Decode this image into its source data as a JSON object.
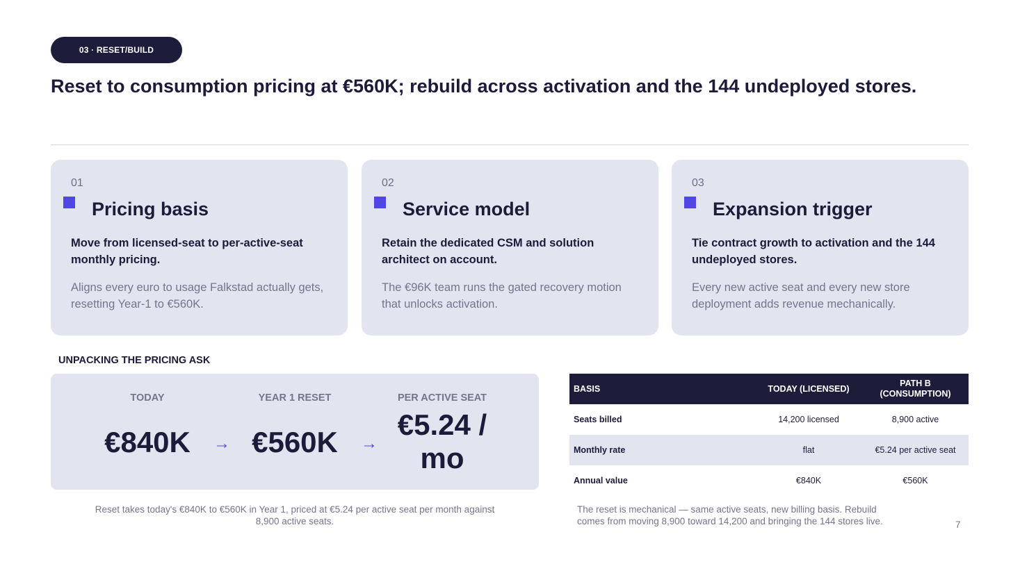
{
  "tag": "03 · RESET/BUILD",
  "title": "Reset to consumption pricing at €560K; rebuild across activation and the 144 undeployed stores.",
  "cards": [
    {
      "num": "01",
      "title": "Pricing basis",
      "lead": "Move from licensed-seat to per-active-seat monthly pricing.",
      "body": "Aligns every euro to usage Falkstad actually gets, resetting Year-1 to €560K."
    },
    {
      "num": "02",
      "title": "Service model",
      "lead": "Retain the dedicated CSM and solution architect on account.",
      "body": "The €96K team runs the gated recovery motion that unlocks activation."
    },
    {
      "num": "03",
      "title": "Expansion trigger",
      "lead": "Tie contract growth to activation and the 144 undeployed stores.",
      "body": "Every new active seat and every new store deployment adds revenue mechanically."
    }
  ],
  "section_label": "UNPACKING THE PRICING ASK",
  "metrics": [
    {
      "label": "TODAY",
      "value": "€840K"
    },
    {
      "label": "YEAR 1 RESET",
      "value": "€560K"
    },
    {
      "label": "PER ACTIVE SEAT",
      "value": "€5.24 / mo"
    }
  ],
  "arrow_glyph": "→",
  "caption_left": "Reset takes today's €840K to €560K in Year 1, priced at €5.24 per active seat per month against 8,900 active seats.",
  "table": {
    "headers": [
      "BASIS",
      "TODAY (LICENSED)",
      "PATH B (CONSUMPTION)"
    ],
    "rows": [
      [
        "Seats billed",
        "14,200 licensed",
        "8,900 active"
      ],
      [
        "Monthly rate",
        "flat",
        "€5.24 per active seat"
      ],
      [
        "Annual value",
        "€840K",
        "€560K"
      ]
    ]
  },
  "caption_right": "The reset is mechanical — same active seats, new billing basis. Rebuild comes from moving 8,900 toward 14,200 and bringing the 144 stores live.",
  "page_number": "7",
  "colors": {
    "accent": "#4f46e5",
    "navy": "#1e1c3b",
    "card_bg": "#e2e4ef",
    "muted_text": "#74758e"
  }
}
